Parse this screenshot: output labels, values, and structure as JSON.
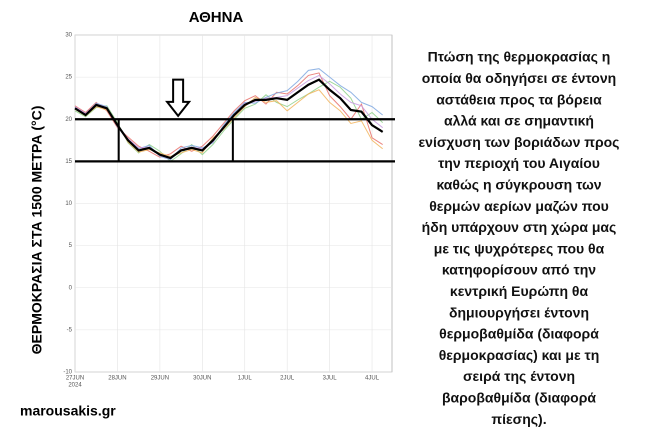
{
  "chart_data": {
    "type": "line",
    "title": "ΑΘΗΝΑ",
    "y_label": "ΘΕΡΜΟΚΡΑΣΙΑ ΣΤΑ 1500 ΜΕΤΡΑ (°C)",
    "x_year_label": "2024",
    "x": [
      0,
      0.25,
      0.5,
      0.75,
      1,
      1.25,
      1.5,
      1.75,
      2,
      2.25,
      2.5,
      2.75,
      3,
      3.25,
      3.5,
      3.75,
      4,
      4.25,
      4.5,
      4.75,
      5,
      5.25,
      5.5,
      5.75,
      6,
      6.25,
      6.5,
      6.75,
      7,
      7.25
    ],
    "series": [
      {
        "color": "#e8706a",
        "values": [
          21.6,
          20.8,
          22.0,
          21.0,
          19.0,
          17.9,
          16.8,
          16.2,
          15.5,
          15.9,
          16.8,
          16.2,
          16.8,
          18.0,
          19.5,
          21.0,
          22.2,
          22.8,
          21.8,
          23.2,
          23.0,
          24.0,
          25.2,
          25.5,
          22.8,
          21.5,
          20.0,
          21.8,
          17.8,
          17.0
        ]
      },
      {
        "color": "#8fd18a",
        "values": [
          21.0,
          20.3,
          21.4,
          21.6,
          19.6,
          17.2,
          16.0,
          17.0,
          16.2,
          15.0,
          15.9,
          17.0,
          15.8,
          17.0,
          18.6,
          20.0,
          21.3,
          21.8,
          22.9,
          22.0,
          21.5,
          22.3,
          23.0,
          23.8,
          24.5,
          23.8,
          22.5,
          20.0,
          20.8,
          19.6
        ]
      },
      {
        "color": "#7fa8e0",
        "values": [
          21.4,
          20.6,
          21.9,
          21.5,
          19.1,
          17.6,
          16.5,
          16.9,
          15.6,
          15.2,
          16.6,
          16.9,
          16.6,
          17.2,
          19.3,
          20.8,
          22.0,
          21.9,
          22.6,
          23.1,
          23.4,
          24.5,
          25.8,
          26.0,
          25.0,
          24.0,
          23.2,
          22.0,
          21.5,
          20.5
        ]
      },
      {
        "color": "#f2b45c",
        "values": [
          21.2,
          20.4,
          21.5,
          21.1,
          19.4,
          17.3,
          16.1,
          16.4,
          16.0,
          15.6,
          16.0,
          16.4,
          16.0,
          17.8,
          18.8,
          20.2,
          21.5,
          22.6,
          22.0,
          22.2,
          21.0,
          22.0,
          23.0,
          23.5,
          22.0,
          21.0,
          19.5,
          19.8,
          17.5,
          16.5
        ]
      },
      {
        "color": "#c79ae0",
        "values": [
          21.5,
          20.7,
          21.8,
          21.4,
          19.2,
          17.7,
          16.6,
          16.7,
          15.7,
          15.3,
          16.4,
          16.7,
          16.5,
          17.3,
          19.1,
          20.6,
          21.9,
          22.1,
          22.5,
          22.6,
          22.8,
          23.7,
          24.6,
          25.2,
          24.2,
          23.0,
          22.0,
          21.6,
          20.0,
          19.0
        ]
      },
      {
        "color": "#000000",
        "values": [
          21.3,
          20.5,
          21.7,
          21.3,
          19.3,
          17.5,
          16.3,
          16.6,
          15.8,
          15.4,
          16.3,
          16.6,
          16.3,
          17.5,
          19.0,
          20.5,
          21.7,
          22.3,
          22.3,
          22.5,
          22.3,
          23.2,
          24.1,
          24.7,
          23.5,
          22.5,
          21.1,
          20.9,
          19.3,
          18.5
        ]
      }
    ],
    "xlim": [
      0,
      7.47
    ],
    "ylim": [
      -10,
      30
    ],
    "xticks": [
      {
        "value": 0,
        "label": "27JUN"
      },
      {
        "value": 1,
        "label": "28JUN"
      },
      {
        "value": 2,
        "label": "29JUN"
      },
      {
        "value": 3,
        "label": "30JUN"
      },
      {
        "value": 4,
        "label": "1JUL"
      },
      {
        "value": 5,
        "label": "2JUL"
      },
      {
        "value": 6,
        "label": "3JUL"
      },
      {
        "value": 7,
        "label": "4JUL"
      }
    ],
    "yticks": [
      -10,
      -5,
      0,
      5,
      10,
      15,
      20,
      25,
      30
    ],
    "grid": true,
    "reference_lines": [
      20,
      15
    ],
    "highlight_box": {
      "x": [
        1.03,
        3.72
      ],
      "y": [
        15,
        20
      ]
    },
    "arrow": {
      "x": 2.43,
      "y": [
        24.7,
        20.4
      ]
    },
    "side_text": [
      "Πτώση της θερμοκρασίας η",
      "οποία θα οδηγήσει σε έντονη",
      "αστάθεια προς τα βόρεια",
      "αλλά και σε σημαντική",
      "ενίσχυση των βοριάδων προς",
      "την περιοχή του Αιγαίου",
      "καθώς η σύγκρουση των",
      "θερμών αερίων μαζών που",
      "ήδη υπάρχουν στη χώρα μας",
      "με τις ψυχρότερες που θα",
      "κατηφορίσουν από την",
      "κεντρική Ευρώπη θα",
      "δημιουργήσει έντονη",
      "θερμοβαθμίδα (διαφορά",
      "θερμοκρασίας) και με τη",
      "σειρά της έντονη",
      "βαροβαθμίδα (διαφορά",
      "πίεσης)."
    ],
    "watermark": "marousakis.gr"
  }
}
